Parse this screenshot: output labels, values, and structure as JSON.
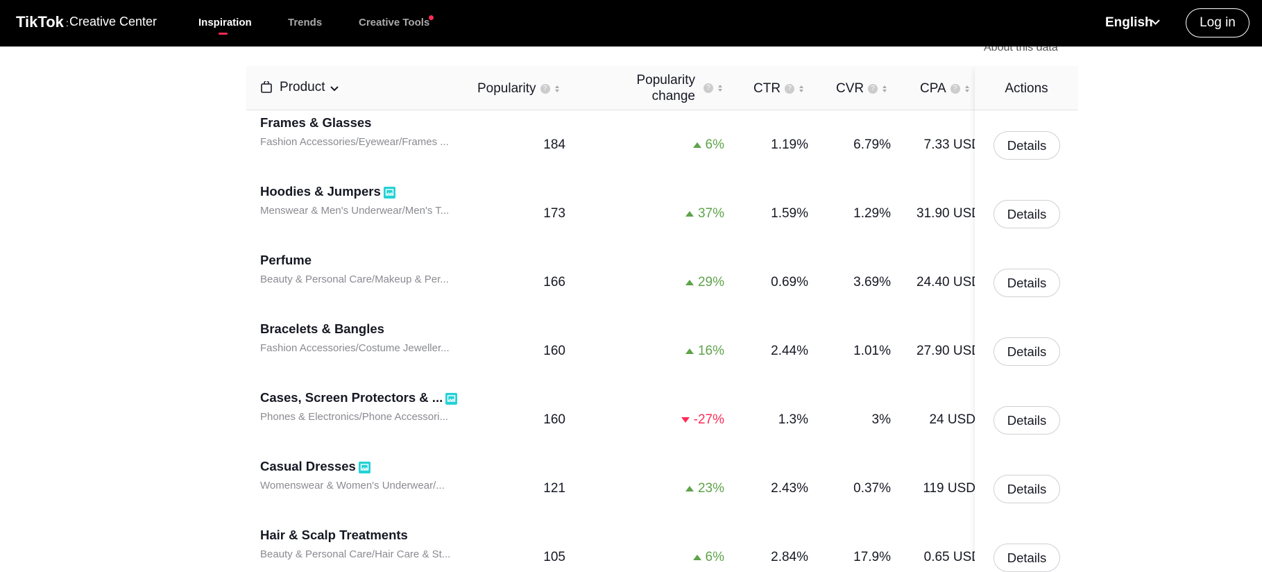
{
  "header": {
    "logo": "TikTok",
    "logo_sub": "Creative Center",
    "nav": [
      "Inspiration",
      "Trends",
      "Creative Tools"
    ],
    "language": "English",
    "login": "Log in"
  },
  "about": "About this data",
  "table": {
    "columns": [
      "Product",
      "Popularity",
      "Popularity change",
      "CTR",
      "CVR",
      "CPA",
      "Actions"
    ],
    "rows": [
      {
        "name": "Frames & Glasses",
        "category": "Fashion Accessories/Eyewear/Frames ...",
        "badge": false,
        "popularity": "184",
        "change": "6%",
        "ctr": "1.19%",
        "cvr": "6.79%",
        "cpa": "7.33 USD",
        "action": "Details"
      },
      {
        "name": "Hoodies & Jumpers",
        "category": "Menswear & Men's Underwear/Men's T...",
        "badge": true,
        "popularity": "173",
        "change": "37%",
        "ctr": "1.59%",
        "cvr": "1.29%",
        "cpa": "31.90 USD",
        "action": "Details"
      },
      {
        "name": "Perfume",
        "category": "Beauty & Personal Care/Makeup & Per...",
        "badge": false,
        "popularity": "166",
        "change": "29%",
        "ctr": "0.69%",
        "cvr": "3.69%",
        "cpa": "24.40 USD",
        "action": "Details"
      },
      {
        "name": "Bracelets & Bangles",
        "category": "Fashion Accessories/Costume Jeweller...",
        "badge": false,
        "popularity": "160",
        "change": "16%",
        "ctr": "2.44%",
        "cvr": "1.01%",
        "cpa": "27.90 USD",
        "action": "Details"
      },
      {
        "name": "Cases, Screen Protectors & ...",
        "category": "Phones & Electronics/Phone Accessori...",
        "badge": true,
        "popularity": "160",
        "change": "-27%",
        "ctr": "1.3%",
        "cvr": "3%",
        "cpa": "24 USD",
        "action": "Details"
      },
      {
        "name": "Casual Dresses",
        "category": "Womenswear & Women's Underwear/...",
        "badge": true,
        "popularity": "121",
        "change": "23%",
        "ctr": "2.43%",
        "cvr": "0.37%",
        "cpa": "119 USD",
        "action": "Details"
      },
      {
        "name": "Hair & Scalp Treatments",
        "category": "Beauty & Personal Care/Hair Care & St...",
        "badge": false,
        "popularity": "105",
        "change": "6%",
        "ctr": "2.84%",
        "cvr": "17.9%",
        "cpa": "0.65 USD",
        "action": "Details"
      }
    ]
  }
}
